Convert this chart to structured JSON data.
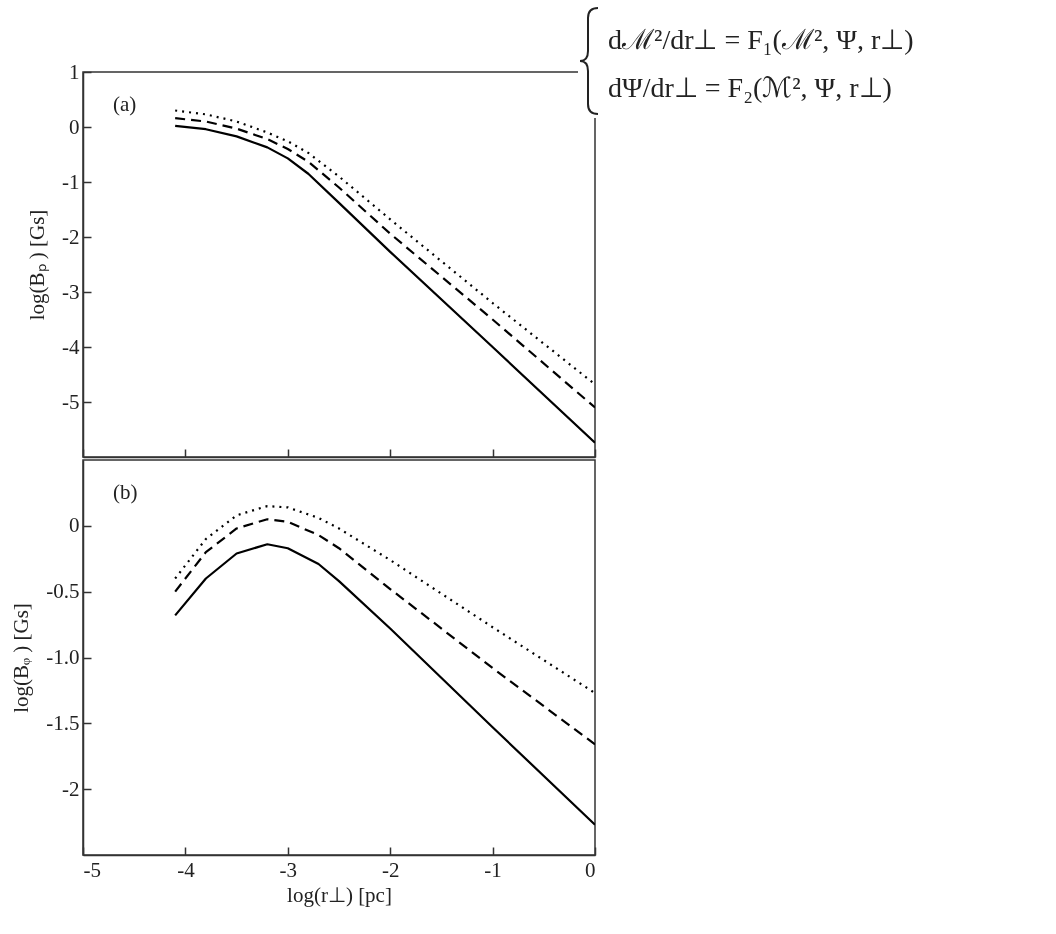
{
  "chart_data": [
    {
      "type": "line",
      "ylabel": "log(Bₚ ) [Gs]",
      "annotations": [
        "(a)",
        "dℳ²/dr⊥ = F₁(ℳ², Ψ, r⊥)",
        "dΨ/dr⊥ = F₂(ℳ², Ψ, r⊥)"
      ],
      "x": [
        -4.1,
        -3.8,
        -3.5,
        -3.2,
        -3.0,
        -2.8,
        -2.5,
        -2,
        -1,
        0
      ],
      "series": [
        {
          "color": "#000000",
          "line_style": "solid",
          "values": [
            0.02,
            -0.04,
            -0.17,
            -0.37,
            -0.57,
            -0.85,
            -1.38,
            -2.27,
            -4.0,
            -5.74
          ]
        },
        {
          "color": "#000000",
          "line_style": "dashed",
          "values": [
            0.16,
            0.1,
            -0.03,
            -0.22,
            -0.4,
            -0.63,
            -1.1,
            -1.94,
            -3.5,
            -5.1
          ]
        },
        {
          "color": "#000000",
          "line_style": "dotted",
          "values": [
            0.3,
            0.23,
            0.1,
            -0.1,
            -0.26,
            -0.47,
            -0.9,
            -1.68,
            -3.2,
            -4.68
          ]
        }
      ],
      "xlim": [
        -5,
        0
      ],
      "xticks": [
        -5,
        -4,
        -3,
        -2,
        -1,
        0
      ],
      "ylim": [
        -6,
        1
      ],
      "yticks": [
        -5,
        -4,
        -3,
        -2,
        -1,
        0,
        1
      ],
      "tick_labels": "y",
      "grid": false,
      "marker": "none"
    },
    {
      "type": "line",
      "xlabel": "log(r⊥) [pc]",
      "ylabel": "log(Bᵩ ) [Gs]",
      "annotations": [
        "(b)"
      ],
      "x": [
        -4.1,
        -3.8,
        -3.5,
        -3.2,
        -3.0,
        -2.7,
        -2.5,
        -2,
        -1,
        0
      ],
      "series": [
        {
          "color": "#000000",
          "line_style": "solid",
          "values": [
            -0.68,
            -0.4,
            -0.21,
            -0.14,
            -0.17,
            -0.29,
            -0.42,
            -0.78,
            -1.53,
            -2.27
          ]
        },
        {
          "color": "#000000",
          "line_style": "dashed",
          "values": [
            -0.5,
            -0.2,
            -0.02,
            0.05,
            0.03,
            -0.07,
            -0.17,
            -0.48,
            -1.08,
            -1.66
          ]
        },
        {
          "color": "#000000",
          "line_style": "dotted",
          "values": [
            -0.4,
            -0.1,
            0.08,
            0.15,
            0.14,
            0.06,
            -0.02,
            -0.26,
            -0.77,
            -1.27
          ]
        }
      ],
      "xlim": [
        -5,
        0
      ],
      "xticks": [
        -5,
        -4,
        -3,
        -2,
        -1,
        0
      ],
      "ylim": [
        -2.5,
        0.5
      ],
      "yticks": [
        -2,
        {
          "value": -1.5,
          "label": "-1.5"
        },
        {
          "value": -1,
          "label": "-1.0"
        },
        -0.5,
        0
      ],
      "grid": false,
      "marker": "none"
    }
  ]
}
